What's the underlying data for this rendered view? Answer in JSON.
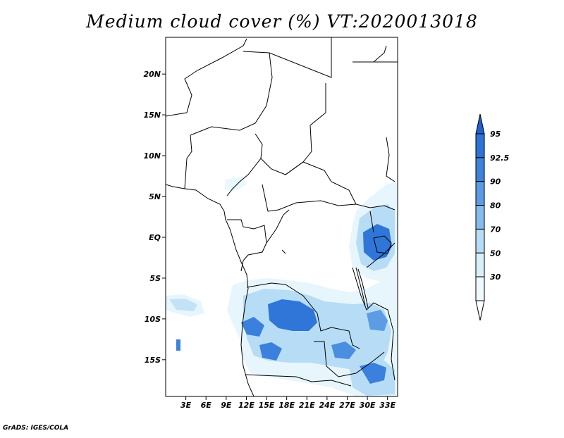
{
  "title": "Medium cloud cover (%) VT:2020013018",
  "credit": "GrADS: IGES/COLA",
  "map": {
    "lon_range": [
      0,
      34.5
    ],
    "lat_range": [
      -19.5,
      24.5
    ],
    "lat_ticks": [
      {
        "value": 20,
        "label": "20N"
      },
      {
        "value": 15,
        "label": "15N"
      },
      {
        "value": 10,
        "label": "10N"
      },
      {
        "value": 5,
        "label": "5N"
      },
      {
        "value": 0,
        "label": "EQ"
      },
      {
        "value": -5,
        "label": "5S"
      },
      {
        "value": -10,
        "label": "10S"
      },
      {
        "value": -15,
        "label": "15S"
      }
    ],
    "lon_ticks": [
      {
        "value": 3,
        "label": "3E"
      },
      {
        "value": 6,
        "label": "6E"
      },
      {
        "value": 9,
        "label": "9E"
      },
      {
        "value": 12,
        "label": "12E"
      },
      {
        "value": 15,
        "label": "15E"
      },
      {
        "value": 18,
        "label": "18E"
      },
      {
        "value": 21,
        "label": "21E"
      },
      {
        "value": 24,
        "label": "24E"
      },
      {
        "value": 27,
        "label": "27E"
      },
      {
        "value": 30,
        "label": "30E"
      },
      {
        "value": 33,
        "label": "33E"
      }
    ]
  },
  "colorbar": {
    "levels": [
      {
        "label": "95",
        "color": "#2d74d6"
      },
      {
        "label": "92.5",
        "color": "#3d83dc"
      },
      {
        "label": "90",
        "color": "#5b9ce4"
      },
      {
        "label": "80",
        "color": "#86bced"
      },
      {
        "label": "70",
        "color": "#b7dcf5"
      },
      {
        "label": "50",
        "color": "#d8effa"
      },
      {
        "label": "30",
        "color": "#effafd"
      }
    ],
    "top_color": "#1f5fcf",
    "bottom_color": "#ffffff"
  }
}
